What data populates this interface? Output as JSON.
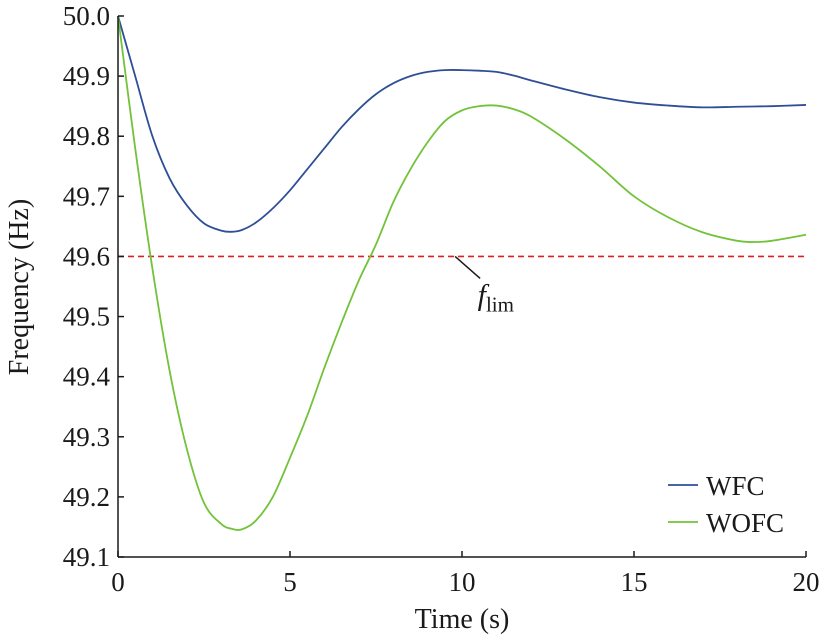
{
  "chart_data": {
    "type": "line",
    "xlabel": "Time (s)",
    "ylabel": "Frequency (Hz)",
    "xlim": [
      0,
      20
    ],
    "ylim": [
      49.1,
      50.0
    ],
    "x_ticks": [
      "0",
      "5",
      "10",
      "15",
      "20"
    ],
    "y_ticks": [
      "49.1",
      "49.2",
      "49.3",
      "49.4",
      "49.5",
      "49.6",
      "49.7",
      "49.8",
      "49.9",
      "50.0"
    ],
    "grid": false,
    "legend_position": "bottom-right",
    "colors": {
      "WFC": "#2e4f96",
      "WOFC": "#72c23a",
      "limit": "#e02020",
      "axis": "#1a1a1a"
    },
    "series": [
      {
        "name": "WFC",
        "x": [
          0,
          0.5,
          1,
          1.5,
          2,
          2.5,
          3,
          3.3,
          3.6,
          4,
          4.5,
          5,
          5.5,
          6,
          6.5,
          7,
          7.5,
          8,
          8.5,
          9,
          9.5,
          10,
          10.5,
          11,
          11.5,
          12,
          13,
          14,
          15,
          16,
          17,
          18,
          19,
          20
        ],
        "y": [
          50.0,
          49.9,
          49.8,
          49.73,
          49.685,
          49.655,
          49.643,
          49.641,
          49.644,
          49.656,
          49.68,
          49.71,
          49.745,
          49.78,
          49.815,
          49.845,
          49.87,
          49.888,
          49.9,
          49.907,
          49.91,
          49.91,
          49.909,
          49.907,
          49.901,
          49.893,
          49.878,
          49.865,
          49.856,
          49.851,
          49.848,
          49.849,
          49.85,
          49.852
        ]
      },
      {
        "name": "WOFC",
        "x": [
          0,
          0.5,
          1,
          1.5,
          2,
          2.5,
          3,
          3.3,
          3.6,
          4,
          4.5,
          5,
          5.5,
          6,
          6.5,
          7,
          7.5,
          8,
          8.5,
          9,
          9.5,
          10,
          10.5,
          11,
          11.5,
          12,
          13,
          14,
          15,
          16,
          17,
          18,
          18.5,
          19,
          20
        ],
        "y": [
          50.0,
          49.78,
          49.58,
          49.41,
          49.28,
          49.19,
          49.155,
          49.147,
          49.146,
          49.16,
          49.2,
          49.265,
          49.335,
          49.415,
          49.49,
          49.56,
          49.62,
          49.69,
          49.745,
          49.79,
          49.825,
          49.843,
          49.85,
          49.851,
          49.845,
          49.833,
          49.795,
          49.75,
          49.7,
          49.665,
          49.64,
          49.626,
          49.624,
          49.626,
          49.636
        ]
      }
    ],
    "reference_line": {
      "y": 49.6,
      "style": "dashed"
    },
    "annotation": {
      "main": "f",
      "sub": "lim",
      "points_to": {
        "x": 9.8,
        "y": 49.6
      },
      "text_at": {
        "x": 10.6,
        "y": 49.52
      }
    }
  }
}
